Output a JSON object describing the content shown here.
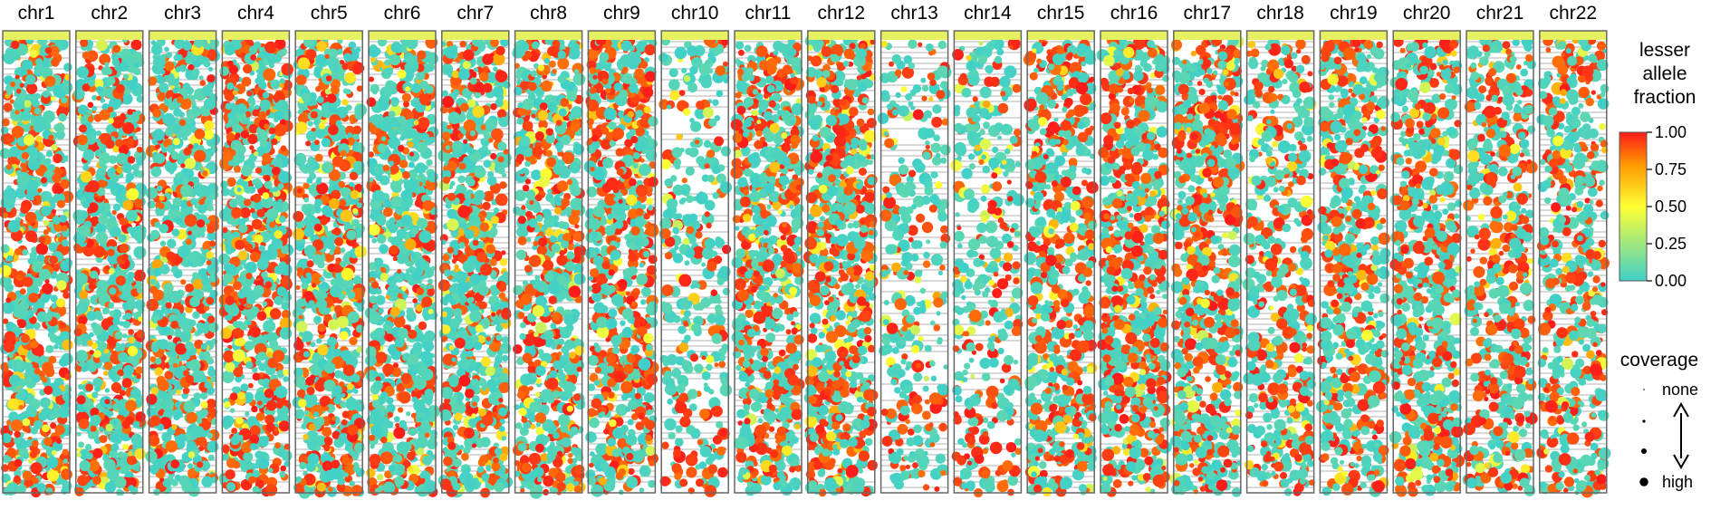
{
  "chart_data": {
    "type": "scatter",
    "chromosomes": [
      "chr1",
      "chr2",
      "chr3",
      "chr4",
      "chr5",
      "chr6",
      "chr7",
      "chr8",
      "chr9",
      "chr10",
      "chr11",
      "chr12",
      "chr13",
      "chr14",
      "chr15",
      "chr16",
      "chr17",
      "chr18",
      "chr19",
      "chr20",
      "chr21",
      "chr22"
    ],
    "density": [
      0.92,
      0.9,
      0.9,
      0.92,
      0.9,
      0.9,
      0.9,
      0.85,
      0.85,
      0.38,
      0.88,
      0.88,
      0.36,
      0.42,
      0.78,
      0.82,
      0.82,
      0.55,
      0.72,
      0.78,
      0.6,
      0.62
    ],
    "red_fraction": [
      0.38,
      0.35,
      0.3,
      0.42,
      0.38,
      0.3,
      0.33,
      0.4,
      0.42,
      0.22,
      0.4,
      0.42,
      0.2,
      0.25,
      0.42,
      0.42,
      0.45,
      0.4,
      0.35,
      0.4,
      0.45,
      0.38
    ],
    "color_legend": {
      "title_lines": [
        "lesser",
        "allele",
        "fraction"
      ],
      "ticks": [
        "1.00",
        "0.75",
        "0.50",
        "0.25",
        "0.00"
      ],
      "tick_values": [
        1.0,
        0.75,
        0.5,
        0.25,
        0.0
      ],
      "range": [
        0,
        1
      ],
      "colors": [
        "#40d0c8",
        "#ffff33",
        "#ff9900",
        "#ff1a1a"
      ]
    },
    "size_legend": {
      "title": "coverage",
      "labels": [
        "none",
        "",
        "",
        "high"
      ]
    },
    "grid": false
  },
  "colors": {
    "panel_border": "#666666",
    "panel_top_strip": "#e6f060",
    "gap_line": "#9a9a9a",
    "low": "#40d0c8",
    "high": "#ff1a1a"
  }
}
